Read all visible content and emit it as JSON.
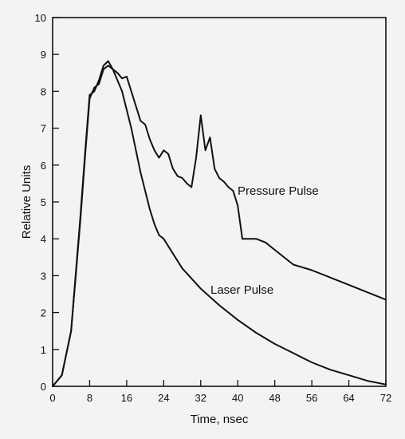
{
  "chart_data": {
    "type": "line",
    "title": "",
    "xlabel": "Time, nsec",
    "ylabel": "Relative Units",
    "xlim": [
      0,
      72
    ],
    "ylim": [
      0,
      10
    ],
    "x_ticks": [
      0,
      8,
      16,
      24,
      32,
      40,
      48,
      56,
      64,
      72
    ],
    "y_ticks": [
      0,
      1,
      2,
      3,
      4,
      5,
      6,
      7,
      8,
      9,
      10
    ],
    "x_tick_labels": [
      "0",
      "8",
      "16",
      "24",
      "32",
      "40",
      "48",
      "56",
      "64",
      "72"
    ],
    "y_tick_labels": [
      "0",
      "1",
      "2",
      "3",
      "4",
      "5",
      "6",
      "7",
      "8",
      "9",
      "10"
    ],
    "grid": false,
    "legend": "none",
    "annotations": [
      {
        "text": "Pressure Pulse",
        "series": "pressure"
      },
      {
        "text": "Laser Pulse",
        "series": "laser"
      }
    ],
    "series": [
      {
        "id": "pressure",
        "x": [
          0,
          2,
          4,
          6,
          7,
          8,
          9,
          10,
          11,
          12,
          13,
          14,
          15,
          16,
          17,
          18,
          19,
          20,
          21,
          22,
          23,
          24,
          25,
          26,
          27,
          28,
          29,
          30,
          31,
          32,
          33,
          34,
          35,
          36,
          37,
          38,
          39,
          40,
          41,
          42,
          44,
          46,
          48,
          52,
          56,
          60,
          64,
          68,
          72
        ],
        "y": [
          0,
          0.3,
          1.5,
          4.5,
          6.2,
          7.8,
          8.1,
          8.2,
          8.6,
          8.7,
          8.6,
          8.5,
          8.35,
          8.4,
          8.0,
          7.6,
          7.2,
          7.1,
          6.7,
          6.4,
          6.2,
          6.4,
          6.3,
          5.9,
          5.7,
          5.65,
          5.5,
          5.4,
          6.2,
          7.35,
          6.4,
          6.75,
          5.9,
          5.65,
          5.55,
          5.4,
          5.3,
          4.9,
          4.0,
          4.0,
          4.0,
          3.9,
          3.7,
          3.3,
          3.15,
          2.95,
          2.75,
          2.55,
          2.35
        ]
      },
      {
        "id": "laser",
        "x": [
          0,
          2,
          4,
          6,
          7,
          8,
          9,
          10,
          11,
          12,
          13,
          14,
          15,
          16,
          17,
          18,
          19,
          20,
          21,
          22,
          23,
          24,
          26,
          28,
          32,
          36,
          40,
          44,
          48,
          52,
          56,
          60,
          64,
          68,
          72
        ],
        "y": [
          0,
          0.3,
          1.5,
          4.6,
          6.3,
          7.9,
          8.0,
          8.3,
          8.7,
          8.82,
          8.6,
          8.3,
          8.0,
          7.5,
          7.0,
          6.4,
          5.8,
          5.3,
          4.8,
          4.4,
          4.1,
          4.0,
          3.6,
          3.2,
          2.65,
          2.2,
          1.8,
          1.45,
          1.15,
          0.9,
          0.65,
          0.45,
          0.3,
          0.15,
          0.05
        ]
      }
    ]
  }
}
